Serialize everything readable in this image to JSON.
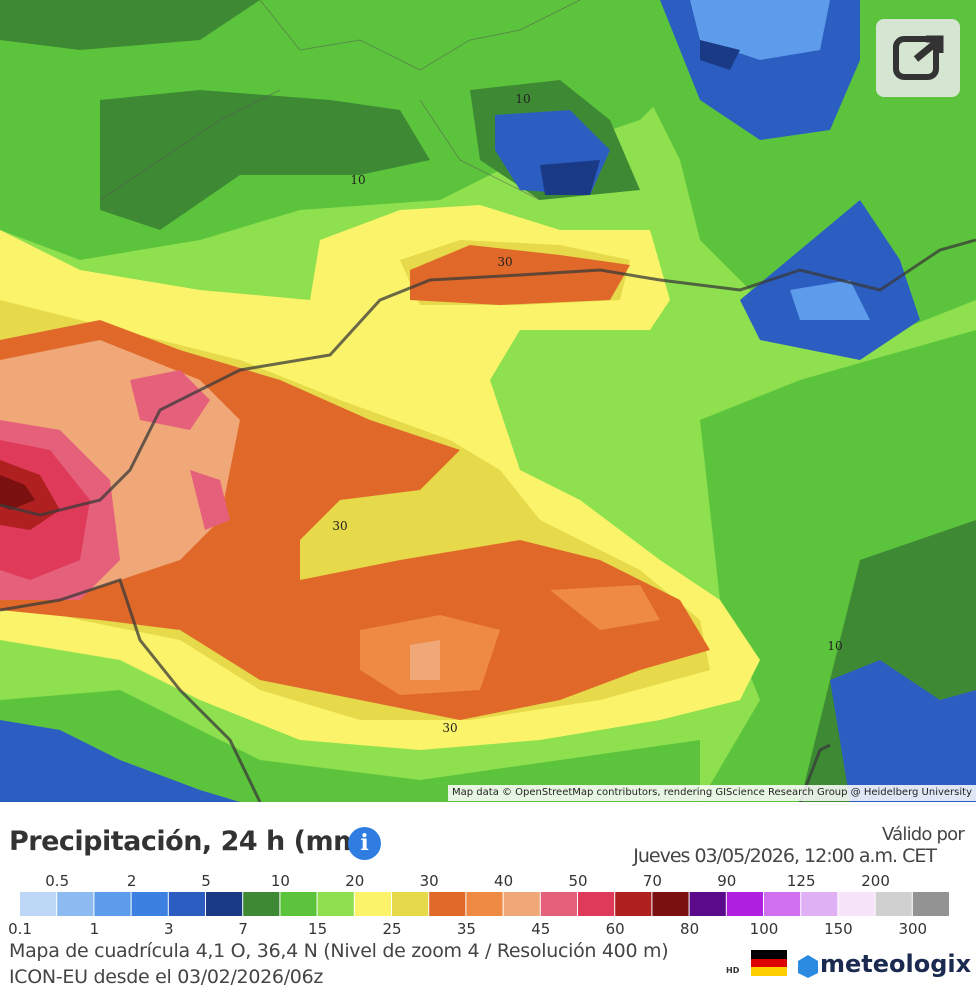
{
  "map": {
    "contour_labels": [
      "10",
      "10",
      "10",
      "30",
      "30",
      "30"
    ],
    "attribution": "Map data © OpenStreetMap contributors, rendering GIScience Research Group @ Heidelberg University"
  },
  "panel": {
    "title": "Precipitación, 24 h (mm)",
    "valid_label": "Válido por",
    "valid_time": "Jueves 03/05/2026, 12:00 a.m. CET",
    "grid_info": "Mapa de cuadrícula 4,1 O, 36,4 N (Nivel de zoom 4 / Resolución 400 m)",
    "model_info": "ICON-EU desde el 03/02/2026/06z",
    "hd": "HD",
    "brand": "meteologix"
  },
  "legend": {
    "labels": [
      "0.1",
      "0.5",
      "1",
      "2",
      "3",
      "5",
      "7",
      "10",
      "15",
      "20",
      "25",
      "30",
      "35",
      "40",
      "45",
      "50",
      "60",
      "70",
      "80",
      "90",
      "100",
      "125",
      "150",
      "200",
      "300"
    ],
    "colors": [
      "#bcd6f6",
      "#8cbaf1",
      "#5c9cea",
      "#3c80e2",
      "#2c5ec2",
      "#1a3a86",
      "#3e8a34",
      "#5cc43c",
      "#8ee04f",
      "#fbf36a",
      "#e6d94a",
      "#e0692a",
      "#ee8a44",
      "#f0a878",
      "#e5607a",
      "#e03a5a",
      "#b02020",
      "#7a1010",
      "#5a0a8a",
      "#b020e0",
      "#d070f0",
      "#e0b0f5",
      "#f7e4fb",
      "#d0d0d0",
      "#939393"
    ]
  }
}
